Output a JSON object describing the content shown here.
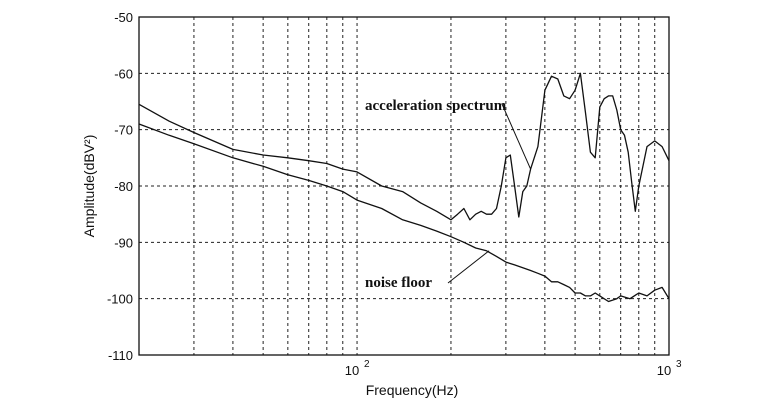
{
  "chart_data": {
    "type": "line",
    "title": "",
    "xlabel": "Frequency(Hz)",
    "ylabel": "Amplitude(dBV²)",
    "xscale": "log",
    "xlim": [
      20,
      1000
    ],
    "ylim": [
      -110,
      -50
    ],
    "grid": true,
    "xticks": [
      {
        "value": 100,
        "base": "10",
        "exp": "2"
      },
      {
        "value": 1000,
        "base": "10",
        "exp": "3"
      }
    ],
    "yticks": [
      -110,
      -100,
      -90,
      -80,
      -70,
      -60,
      -50
    ],
    "series": [
      {
        "name": "acceleration spectrum",
        "x": [
          20,
          25,
          30,
          40,
          50,
          60,
          70,
          80,
          90,
          100,
          120,
          140,
          160,
          180,
          200,
          210,
          220,
          230,
          240,
          250,
          260,
          270,
          280,
          290,
          300,
          310,
          320,
          330,
          340,
          350,
          360,
          380,
          400,
          420,
          440,
          460,
          480,
          500,
          520,
          540,
          560,
          580,
          600,
          620,
          640,
          660,
          680,
          700,
          720,
          740,
          760,
          780,
          800,
          850,
          900,
          950,
          1000
        ],
        "y": [
          -65.5,
          -68.5,
          -70.5,
          -73.5,
          -74.5,
          -75,
          -75.5,
          -76,
          -77,
          -77.5,
          -80,
          -81,
          -83,
          -84.5,
          -86,
          -85,
          -84,
          -86,
          -85,
          -84.5,
          -85,
          -85,
          -84,
          -80,
          -75,
          -74.5,
          -80,
          -85.5,
          -81,
          -80,
          -77,
          -73,
          -63,
          -60.5,
          -61,
          -64,
          -64.5,
          -63,
          -60,
          -67,
          -74,
          -75,
          -66,
          -64.5,
          -64,
          -64,
          -66.5,
          -70,
          -71,
          -74,
          -79.5,
          -84.5,
          -80,
          -73,
          -72,
          -73,
          -75.5
        ]
      },
      {
        "name": "noise floor",
        "x": [
          20,
          25,
          30,
          40,
          50,
          60,
          70,
          80,
          90,
          100,
          120,
          140,
          160,
          180,
          200,
          220,
          240,
          260,
          280,
          300,
          320,
          340,
          360,
          380,
          400,
          420,
          440,
          460,
          480,
          500,
          520,
          540,
          560,
          580,
          600,
          640,
          680,
          700,
          750,
          800,
          850,
          900,
          950,
          1000
        ],
        "y": [
          -69,
          -71,
          -72.5,
          -75,
          -76.5,
          -78,
          -79,
          -80,
          -81,
          -82.5,
          -84,
          -86,
          -87,
          -88,
          -89,
          -90,
          -91,
          -91.5,
          -92.5,
          -93.5,
          -94,
          -94.5,
          -95,
          -95.5,
          -96,
          -97,
          -97,
          -97.5,
          -98,
          -99,
          -99,
          -99.5,
          -99.5,
          -99,
          -99.5,
          -100.5,
          -100,
          -99.5,
          -100,
          -99,
          -99.5,
          -98.5,
          -98,
          -100
        ]
      }
    ],
    "annotations": [
      {
        "text": "acceleration spectrum",
        "series": "acceleration spectrum"
      },
      {
        "text": "noise floor",
        "series": "noise floor"
      }
    ]
  }
}
